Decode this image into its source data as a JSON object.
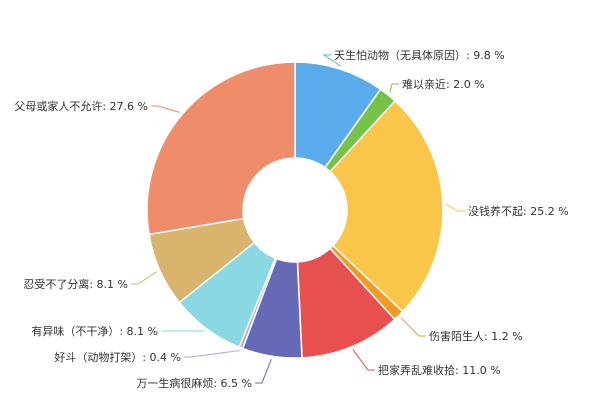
{
  "chart_data": {
    "type": "pie",
    "variant": "donut",
    "unit": "%",
    "slices": [
      {
        "label": "天生怕动物（无具体原因）",
        "value": 9.8,
        "display": "天生怕动物（无具体原因）: 9.8 %",
        "color": "#5aabec"
      },
      {
        "label": "难以亲近",
        "value": 2.0,
        "display": "难以亲近: 2.0 %",
        "color": "#77c34a"
      },
      {
        "label": "没钱养不起",
        "value": 25.2,
        "display": "没钱养不起: 25.2 %",
        "color": "#fac64a"
      },
      {
        "label": "伤害陌生人",
        "value": 1.2,
        "display": "伤害陌生人: 1.2 %",
        "color": "#f39a26"
      },
      {
        "label": "把家弄乱难收拾",
        "value": 11.0,
        "display": "把家弄乱难收拾: 11.0 %",
        "color": "#e85050"
      },
      {
        "label": "万一生病很麻烦",
        "value": 6.5,
        "display": "万一生病很麻烦: 6.5 %",
        "color": "#6569b6"
      },
      {
        "label": "好斗（动物打架）",
        "value": 0.4,
        "display": "好斗（动物打架）: 0.4 %",
        "color": "#b6a6d8"
      },
      {
        "label": "有异味（不干净）",
        "value": 8.1,
        "display": "有异味（不干净）: 8.1 %",
        "color": "#8ad8e1"
      },
      {
        "label": "忍受不了分离",
        "value": 8.1,
        "display": "忍受不了分离: 8.1 %",
        "color": "#d9b46c"
      },
      {
        "label": "父母或家人不允许",
        "value": 27.6,
        "display": "父母或家人不允许: 27.6 %",
        "color": "#ef8d6b"
      }
    ]
  }
}
